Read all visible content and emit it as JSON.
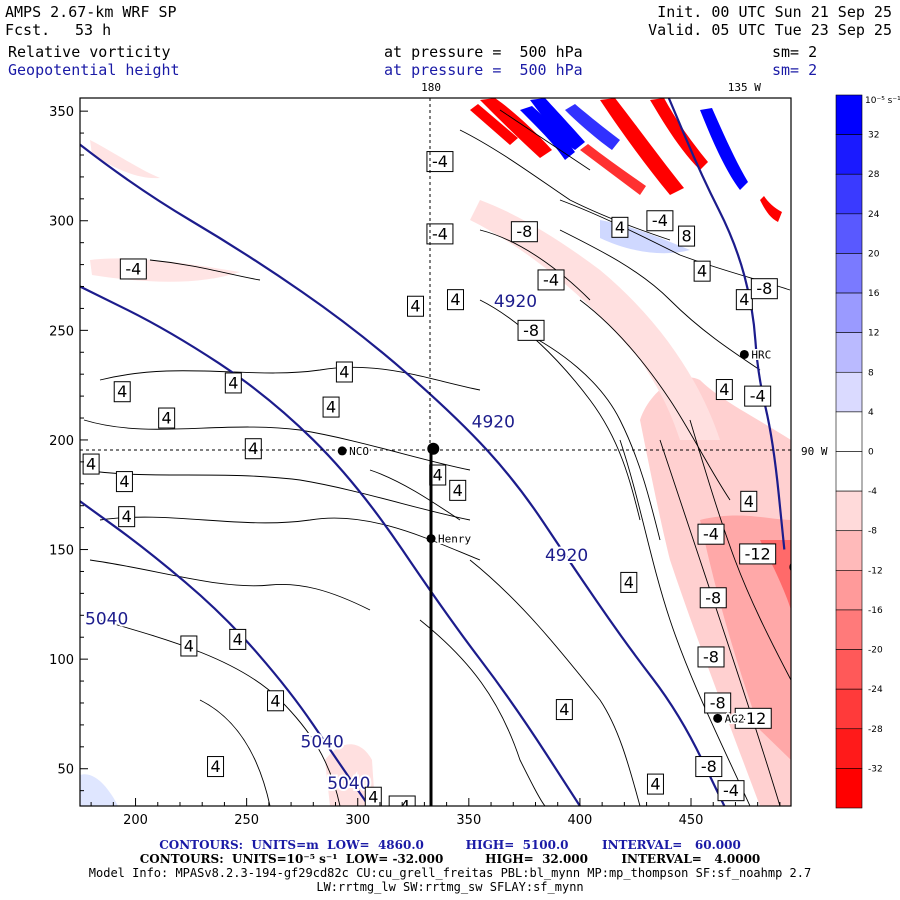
{
  "header": {
    "model": "AMPS 2.67-km WRF SP",
    "forecast_label": "Fcst.",
    "forecast_hours": "53 h",
    "init": "Init. 00 UTC Sun 21 Sep 25",
    "valid": "Valid. 05 UTC Tue 23 Sep 25",
    "field1_name": "Relative vorticity",
    "field1_level": "at pressure =  500 hPa",
    "field1_sm": "sm= 2",
    "field2_name": "Geopotential height",
    "field2_level": "at pressure =  500 hPa",
    "field2_sm": "sm= 2"
  },
  "colors": {
    "height_contour": "#1c1c8c",
    "neg_strong": "#ff0000",
    "pos_strong": "#0000ff",
    "header_blue": "#1a1aa6"
  },
  "footer": {
    "line1": "CONTOURS:  UNITS=m  LOW=  4860.0          HIGH=  5100.0        INTERVAL=   60.000",
    "line2": "CONTOURS:  UNITS=10⁻⁵ s⁻¹  LOW= -32.000          HIGH=  32.000        INTERVAL=   4.0000",
    "line3": "Model Info: MPASv8.2.3-194-gf29cd82c CU:cu_grell_freitas PBL:bl_mynn MP:mp_thompson SF:sf_noahmp 2.7",
    "line4": "LW:rrtmg_lw SW:rrtmg_sw SFLAY:sf_mynn"
  },
  "chart_data": {
    "type": "contour",
    "title": "Relative vorticity and Geopotential height at 500 hPa",
    "xlim": [
      175,
      495
    ],
    "ylim": [
      33,
      356
    ],
    "x_ticks": [
      200,
      250,
      300,
      350,
      400,
      450
    ],
    "y_ticks": [
      50,
      100,
      150,
      200,
      250,
      300,
      350
    ],
    "grid_labels": [
      {
        "text": "180",
        "x": 333,
        "y": 356
      },
      {
        "text": "135 W",
        "x": 474,
        "y": 356
      },
      {
        "text": "90 W",
        "x": 495,
        "y": 195
      }
    ],
    "colorbar": {
      "units": "10⁻⁵ s⁻¹",
      "levels": [
        32,
        28,
        24,
        20,
        16,
        12,
        8,
        4,
        0,
        -4,
        -8,
        -12,
        -16,
        -20,
        -24,
        -28,
        -32
      ],
      "colors": [
        "#0000ff",
        "#1a1aff",
        "#3a3aff",
        "#5959ff",
        "#7a7aff",
        "#9a9aff",
        "#babaff",
        "#dadaff",
        "#ffffff",
        "#ffffff",
        "#ffdada",
        "#ffbaba",
        "#ff9a9a",
        "#ff7a7a",
        "#ff5959",
        "#ff3a3a",
        "#ff1a1a",
        "#ff0000"
      ]
    },
    "height_contours": [
      {
        "label": "4920",
        "points": [
          [
            148,
            356
          ],
          [
            200,
            315
          ],
          [
            250,
            285
          ],
          [
            300,
            250
          ],
          [
            345,
            210
          ],
          [
            372,
            180
          ],
          [
            395,
            145
          ],
          [
            420,
            108
          ],
          [
            445,
            75
          ],
          [
            465,
            33
          ]
        ]
      },
      {
        "label": "4920",
        "points": [
          [
            440,
            356
          ],
          [
            455,
            320
          ],
          [
            470,
            290
          ],
          [
            478,
            260
          ],
          [
            480,
            230
          ],
          [
            487,
            200
          ],
          [
            492,
            150
          ]
        ]
      },
      {
        "label": "5040",
        "points": [
          [
            175,
            270
          ],
          [
            215,
            250
          ],
          [
            260,
            220
          ],
          [
            300,
            180
          ],
          [
            340,
            120
          ],
          [
            370,
            80
          ],
          [
            400,
            33
          ]
        ]
      },
      {
        "label": "5040",
        "points": [
          [
            175,
            172
          ],
          [
            205,
            150
          ],
          [
            240,
            120
          ],
          [
            270,
            85
          ],
          [
            290,
            55
          ],
          [
            305,
            33
          ]
        ]
      }
    ],
    "height_labels": [
      {
        "text": "4920",
        "x": 371,
        "y": 263
      },
      {
        "text": "4920",
        "x": 361,
        "y": 208
      },
      {
        "text": "4920",
        "x": 394,
        "y": 147
      },
      {
        "text": "5040",
        "x": 187,
        "y": 118
      },
      {
        "text": "5040",
        "x": 284,
        "y": 62
      },
      {
        "text": "5040",
        "x": 296,
        "y": 43
      }
    ],
    "vorticity_labels": [
      {
        "text": "-4",
        "x": 337,
        "y": 327
      },
      {
        "text": "-4",
        "x": 337,
        "y": 294
      },
      {
        "text": "-8",
        "x": 375,
        "y": 295
      },
      {
        "text": "-4",
        "x": 387,
        "y": 273
      },
      {
        "text": "-4",
        "x": 199,
        "y": 278
      },
      {
        "text": "4",
        "x": 326,
        "y": 261
      },
      {
        "text": "4",
        "x": 344,
        "y": 264
      },
      {
        "text": "-8",
        "x": 378,
        "y": 250
      },
      {
        "text": "4",
        "x": 294,
        "y": 231
      },
      {
        "text": "4",
        "x": 244,
        "y": 226
      },
      {
        "text": "4",
        "x": 194,
        "y": 222
      },
      {
        "text": "4",
        "x": 288,
        "y": 215
      },
      {
        "text": "4",
        "x": 214,
        "y": 210
      },
      {
        "text": "4",
        "x": 253,
        "y": 196
      },
      {
        "text": "4",
        "x": 195,
        "y": 181
      },
      {
        "text": "4",
        "x": 196,
        "y": 165
      },
      {
        "text": "4",
        "x": 180,
        "y": 189
      },
      {
        "text": "4",
        "x": 246,
        "y": 109
      },
      {
        "text": "4",
        "x": 224,
        "y": 106
      },
      {
        "text": "4",
        "x": 263,
        "y": 81
      },
      {
        "text": "4",
        "x": 236,
        "y": 51
      },
      {
        "text": "4",
        "x": 455,
        "y": 277
      },
      {
        "text": "4",
        "x": 474,
        "y": 264
      },
      {
        "text": "4",
        "x": 465,
        "y": 223
      },
      {
        "text": "4",
        "x": 476,
        "y": 172
      },
      {
        "text": "4",
        "x": 422,
        "y": 135
      },
      {
        "text": "-4",
        "x": 459,
        "y": 157
      },
      {
        "text": "-8",
        "x": 483,
        "y": 269
      },
      {
        "text": "-4",
        "x": 480,
        "y": 220
      },
      {
        "text": "-12",
        "x": 480,
        "y": 148
      },
      {
        "text": "-8",
        "x": 460,
        "y": 128
      },
      {
        "text": "-8",
        "x": 459,
        "y": 101
      },
      {
        "text": "-8",
        "x": 462,
        "y": 80
      },
      {
        "text": "-12",
        "x": 478,
        "y": 73
      },
      {
        "text": "-8",
        "x": 458,
        "y": 51
      },
      {
        "text": "-4",
        "x": 468,
        "y": 40
      },
      {
        "text": "-4",
        "x": 320,
        "y": 33
      },
      {
        "text": "4",
        "x": 307,
        "y": 37
      },
      {
        "text": "4",
        "x": 434,
        "y": 43
      },
      {
        "text": "4",
        "x": 393,
        "y": 77
      },
      {
        "text": "-4",
        "x": 436,
        "y": 300
      },
      {
        "text": "8",
        "x": 448,
        "y": 293
      },
      {
        "text": "4",
        "x": 418,
        "y": 297
      },
      {
        "text": "4",
        "x": 336,
        "y": 184
      },
      {
        "text": "4",
        "x": 345,
        "y": 177
      }
    ],
    "stations": [
      {
        "name": "HRC",
        "x": 474,
        "y": 239
      },
      {
        "name": "NCO",
        "x": 293,
        "y": 195
      },
      {
        "name": "Henry",
        "x": 333,
        "y": 155
      },
      {
        "name": "AG2",
        "x": 462,
        "y": 73
      },
      {
        "name": "",
        "x": 334,
        "y": 196
      },
      {
        "name": "",
        "x": 497,
        "y": 142
      }
    ]
  }
}
